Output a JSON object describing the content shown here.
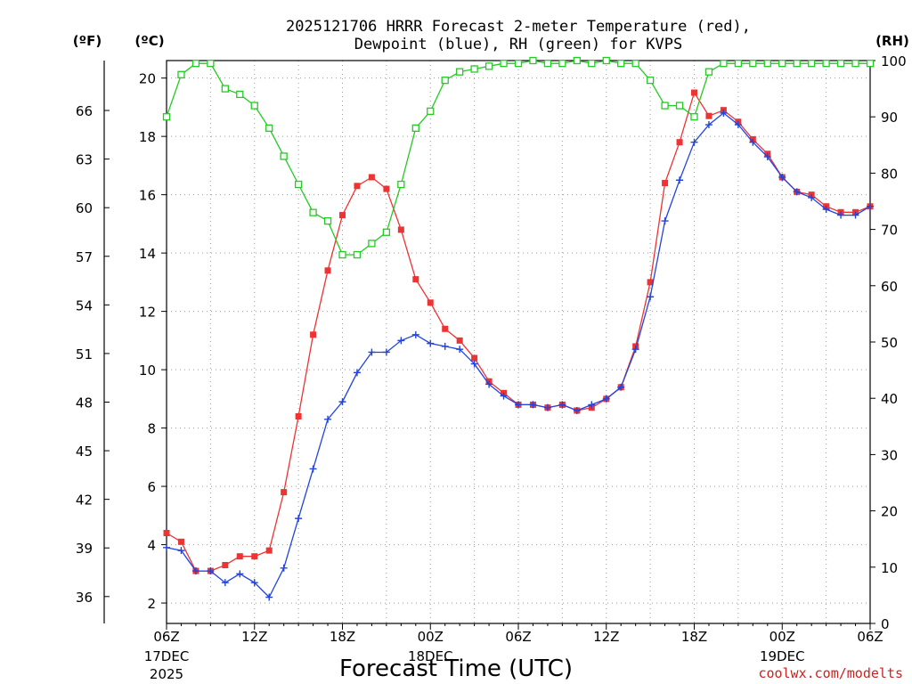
{
  "chart_data": {
    "type": "line",
    "title_line1": "2025121706 HRRR Forecast 2-meter Temperature (red),",
    "title_line2": "Dewpoint (blue), RH (green) for KVPS",
    "xlabel": "Forecast Time (UTC)",
    "credit": "coolwx.com/modelts",
    "unit_f": "(ºF)",
    "unit_c": "(ºC)",
    "unit_rh": "(RH)",
    "x_ticks": [
      {
        "h": 0,
        "label": "06Z",
        "sub1": "17DEC",
        "sub2": "2025"
      },
      {
        "h": 6,
        "label": "12Z",
        "sub1": "",
        "sub2": ""
      },
      {
        "h": 12,
        "label": "18Z",
        "sub1": "",
        "sub2": ""
      },
      {
        "h": 18,
        "label": "00Z",
        "sub1": "18DEC",
        "sub2": ""
      },
      {
        "h": 24,
        "label": "06Z",
        "sub1": "",
        "sub2": ""
      },
      {
        "h": 30,
        "label": "12Z",
        "sub1": "",
        "sub2": ""
      },
      {
        "h": 36,
        "label": "18Z",
        "sub1": "",
        "sub2": ""
      },
      {
        "h": 42,
        "label": "00Z",
        "sub1": "19DEC",
        "sub2": ""
      },
      {
        "h": 48,
        "label": "06Z",
        "sub1": "",
        "sub2": ""
      }
    ],
    "xlim": [
      0,
      48
    ],
    "ylim_c": [
      1.3,
      20.6
    ],
    "ylim_rh": [
      0,
      100
    ],
    "c_ticks": [
      2,
      4,
      6,
      8,
      10,
      12,
      14,
      16,
      18,
      20
    ],
    "f_ticks": [
      36,
      39,
      42,
      45,
      48,
      51,
      54,
      57,
      60,
      63,
      66
    ],
    "rh_ticks": [
      0,
      10,
      20,
      30,
      40,
      50,
      60,
      70,
      80,
      90,
      100
    ],
    "series": [
      {
        "name": "Temperature",
        "color": "#ee3333",
        "marker": "filled-square",
        "values": [
          4.4,
          4.1,
          3.1,
          3.1,
          3.3,
          3.6,
          3.6,
          3.8,
          5.8,
          8.4,
          11.2,
          13.4,
          15.3,
          16.3,
          16.6,
          16.2,
          14.8,
          13.1,
          12.3,
          11.4,
          11.0,
          10.4,
          9.6,
          9.2,
          8.8,
          8.8,
          8.7,
          8.8,
          8.6,
          8.7,
          9.0,
          9.4,
          10.8,
          13.0,
          16.4,
          17.8,
          19.5,
          18.7,
          18.9,
          18.5,
          17.9,
          17.4,
          16.6,
          16.1,
          16.0,
          15.6,
          15.4,
          15.4,
          15.6
        ]
      },
      {
        "name": "Dewpoint",
        "color": "#2244dd",
        "marker": "plus",
        "values": [
          3.9,
          3.8,
          3.1,
          3.1,
          2.7,
          3.0,
          2.7,
          2.2,
          3.2,
          4.9,
          6.6,
          8.3,
          8.9,
          9.9,
          10.6,
          10.6,
          11.0,
          11.2,
          10.9,
          10.8,
          10.7,
          10.2,
          9.5,
          9.1,
          8.8,
          8.8,
          8.7,
          8.8,
          8.6,
          8.8,
          9.0,
          9.4,
          10.7,
          12.5,
          15.1,
          16.5,
          17.8,
          18.4,
          18.8,
          18.4,
          17.8,
          17.3,
          16.6,
          16.1,
          15.9,
          15.5,
          15.3,
          15.3,
          15.6
        ]
      },
      {
        "name": "RH",
        "color": "#22cc22",
        "marker": "open-square",
        "values": [
          90,
          97.5,
          99.5,
          99.5,
          95,
          94,
          92,
          88,
          83,
          78,
          73,
          71.5,
          65.5,
          65.5,
          67.5,
          69.5,
          78,
          88,
          91,
          96.5,
          98,
          98.5,
          99,
          99.5,
          99.5,
          100,
          99.5,
          99.5,
          100,
          99.5,
          100,
          99.5,
          99.5,
          96.5,
          92,
          92,
          90,
          98,
          99.5,
          99.5,
          99.5,
          99.5,
          99.5,
          99.5,
          99.5,
          99.5,
          99.5,
          99.5,
          99.5
        ]
      }
    ]
  }
}
